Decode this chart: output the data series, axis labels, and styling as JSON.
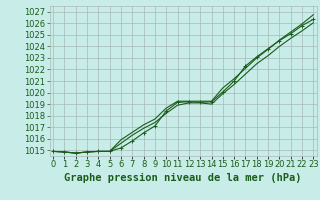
{
  "title": "Graphe pression niveau de la mer (hPa)",
  "x_labels": [
    "0",
    "1",
    "2",
    "3",
    "4",
    "5",
    "6",
    "7",
    "8",
    "9",
    "10",
    "11",
    "12",
    "13",
    "14",
    "15",
    "16",
    "17",
    "18",
    "19",
    "20",
    "21",
    "22",
    "23"
  ],
  "x_values": [
    0,
    1,
    2,
    3,
    4,
    5,
    6,
    7,
    8,
    9,
    10,
    11,
    12,
    13,
    14,
    15,
    16,
    17,
    18,
    19,
    20,
    21,
    22,
    23
  ],
  "line1": [
    1014.9,
    1014.85,
    1014.75,
    1014.85,
    1014.9,
    1014.9,
    1015.2,
    1015.8,
    1016.5,
    1017.1,
    1018.4,
    1019.15,
    1019.2,
    1019.15,
    1019.2,
    1020.05,
    1021.0,
    1022.3,
    1023.1,
    1023.8,
    1024.5,
    1025.1,
    1025.8,
    1026.35
  ],
  "line2": [
    1014.9,
    1014.85,
    1014.75,
    1014.85,
    1014.9,
    1014.9,
    1015.6,
    1016.3,
    1016.9,
    1017.4,
    1018.2,
    1018.9,
    1019.1,
    1019.1,
    1019.0,
    1019.9,
    1020.7,
    1021.6,
    1022.5,
    1023.2,
    1024.0,
    1024.7,
    1025.35,
    1026.05
  ],
  "line3": [
    1014.9,
    1014.85,
    1014.75,
    1014.85,
    1014.9,
    1014.9,
    1015.9,
    1016.55,
    1017.2,
    1017.7,
    1018.65,
    1019.25,
    1019.25,
    1019.25,
    1019.25,
    1020.4,
    1021.2,
    1022.1,
    1023.0,
    1023.75,
    1024.55,
    1025.25,
    1025.95,
    1026.75
  ],
  "ylim": [
    1014.5,
    1027.5
  ],
  "yticks": [
    1015,
    1016,
    1017,
    1018,
    1019,
    1020,
    1021,
    1022,
    1023,
    1024,
    1025,
    1026,
    1027
  ],
  "line_color": "#1a5c1a",
  "bg_color": "#c8ede8",
  "grid_color": "#a8b8b8",
  "title_color": "#1a5c1a",
  "tick_color": "#1a5c1a",
  "title_fontsize": 7.5,
  "tick_fontsize": 6.0
}
